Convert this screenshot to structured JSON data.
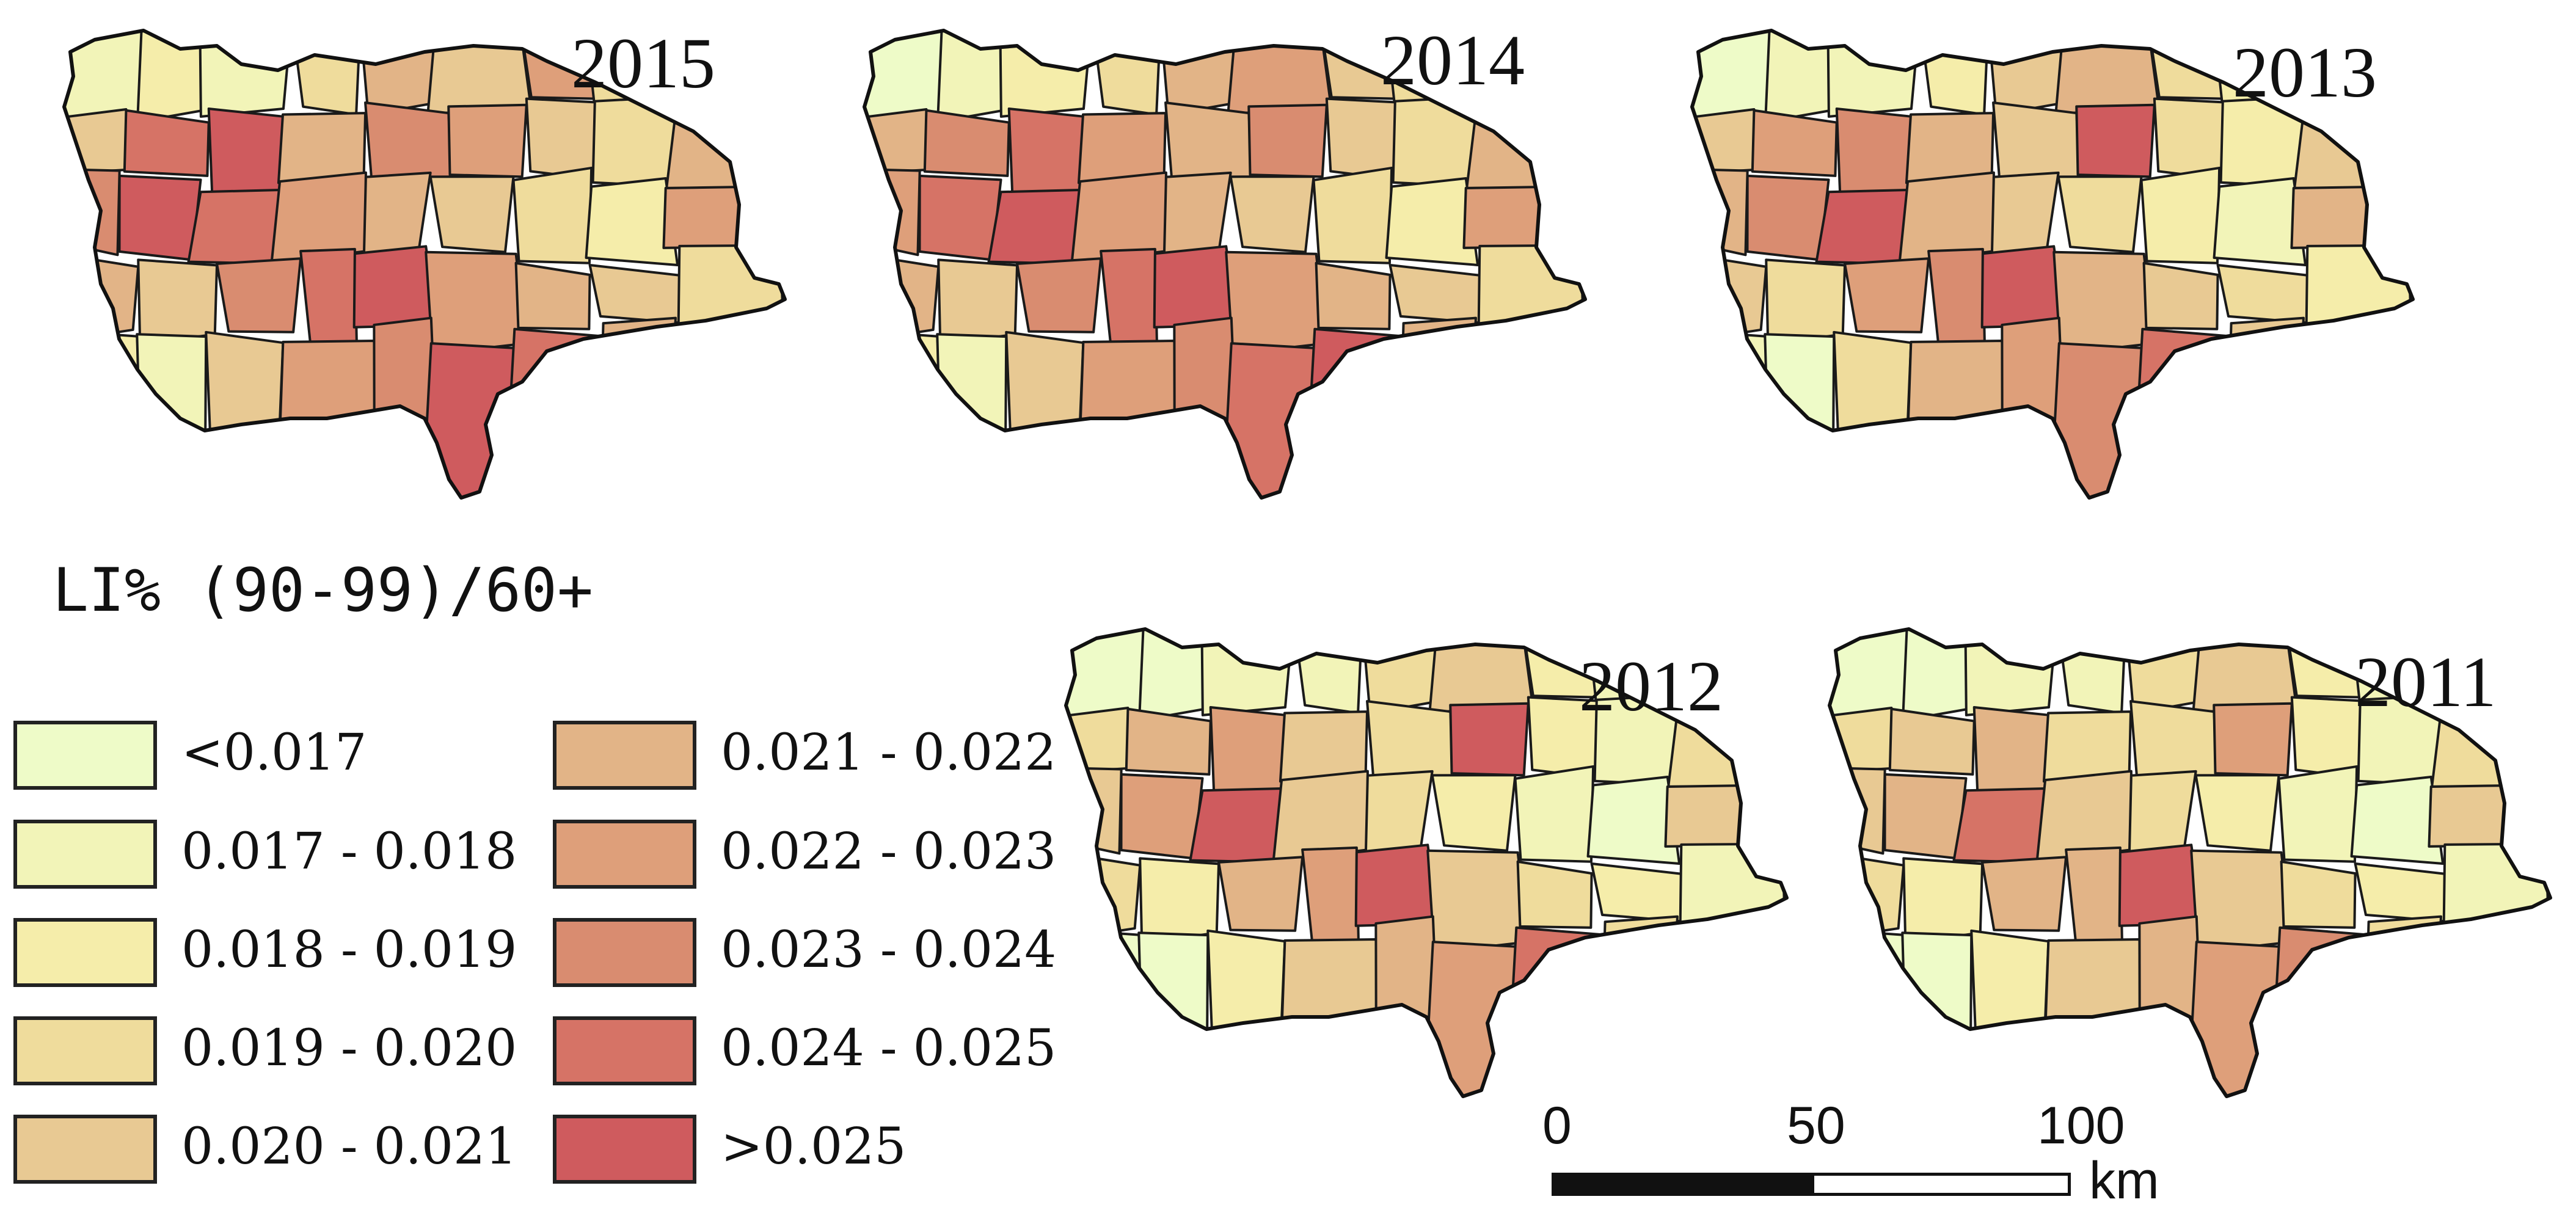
{
  "legend": {
    "title": "LI% (90-99)/60+",
    "classes": [
      {
        "label": "<0.017",
        "color": "#eefbc8"
      },
      {
        "label": "0.017 - 0.018",
        "color": "#f2f4b8"
      },
      {
        "label": "0.018 - 0.019",
        "color": "#f5edaa"
      },
      {
        "label": "0.019 - 0.020",
        "color": "#efdc9c"
      },
      {
        "label": "0.020 - 0.021",
        "color": "#e8c993"
      },
      {
        "label": "0.021 - 0.022",
        "color": "#e2b487"
      },
      {
        "label": "0.022 - 0.023",
        "color": "#de9f7a"
      },
      {
        "label": "0.023 - 0.024",
        "color": "#d98c70"
      },
      {
        "label": "0.024 - 0.025",
        "color": "#d67366"
      },
      {
        "label": ">0.025",
        "color": "#cf5b5e"
      }
    ]
  },
  "maps": [
    {
      "year": "2015",
      "classes": [
        1,
        2,
        1,
        3,
        5,
        4,
        6,
        3,
        2,
        4,
        8,
        9,
        5,
        7,
        6,
        4,
        3,
        5,
        7,
        9,
        8,
        6,
        5,
        4,
        3,
        2,
        6,
        5,
        4,
        7,
        8,
        9,
        6,
        5,
        4,
        3,
        2,
        1,
        4,
        6,
        7,
        9,
        8,
        5,
        4
      ]
    },
    {
      "year": "2014",
      "classes": [
        0,
        1,
        2,
        3,
        5,
        6,
        4,
        3,
        2,
        5,
        7,
        8,
        6,
        5,
        7,
        4,
        3,
        5,
        6,
        8,
        9,
        6,
        5,
        4,
        3,
        2,
        6,
        5,
        4,
        7,
        8,
        9,
        6,
        5,
        4,
        3,
        2,
        1,
        4,
        6,
        7,
        8,
        9,
        5,
        4
      ]
    },
    {
      "year": "2013",
      "classes": [
        0,
        1,
        1,
        2,
        4,
        5,
        3,
        2,
        1,
        4,
        6,
        7,
        5,
        4,
        9,
        3,
        2,
        4,
        5,
        7,
        9,
        5,
        4,
        3,
        2,
        1,
        5,
        4,
        3,
        6,
        7,
        9,
        5,
        4,
        3,
        2,
        1,
        0,
        3,
        5,
        6,
        7,
        8,
        4,
        3
      ]
    },
    {
      "year": "2012",
      "classes": [
        0,
        0,
        1,
        1,
        3,
        4,
        2,
        1,
        0,
        3,
        5,
        6,
        4,
        3,
        9,
        2,
        1,
        3,
        4,
        6,
        9,
        4,
        3,
        2,
        1,
        0,
        4,
        3,
        2,
        5,
        6,
        9,
        4,
        3,
        2,
        1,
        0,
        0,
        2,
        4,
        5,
        6,
        8,
        3,
        2
      ]
    },
    {
      "year": "2011",
      "classes": [
        0,
        0,
        1,
        1,
        3,
        4,
        2,
        1,
        0,
        3,
        4,
        5,
        3,
        3,
        6,
        2,
        1,
        3,
        4,
        5,
        8,
        4,
        3,
        2,
        1,
        0,
        4,
        3,
        2,
        5,
        5,
        9,
        4,
        3,
        2,
        1,
        0,
        0,
        2,
        4,
        5,
        6,
        7,
        3,
        2
      ]
    }
  ],
  "scale": {
    "ticks": [
      "0",
      "50",
      "100"
    ],
    "unit": "km"
  }
}
